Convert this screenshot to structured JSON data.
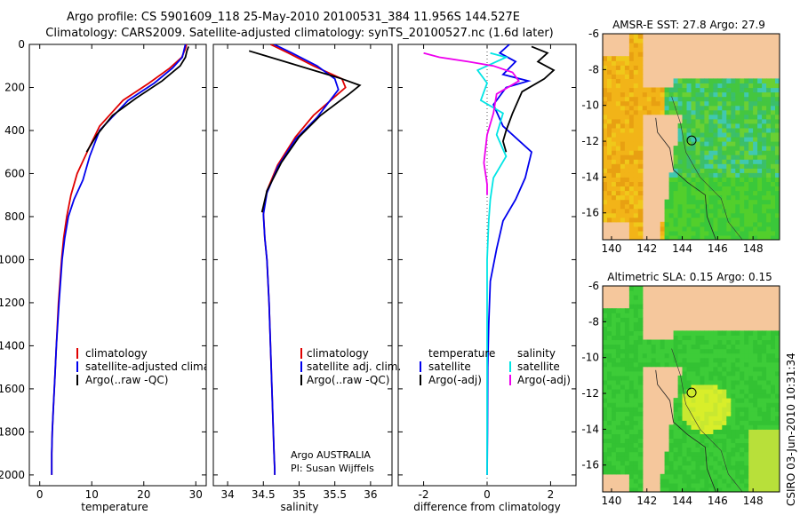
{
  "header": {
    "line1": "Argo profile: CS 5901609_118 25-May-2010 20100531_384 11.956S 144.527E",
    "line2": "Climatology: CARS2009. Satellite-adjusted climatology: synTS_20100527.nc (1.6d later)"
  },
  "colors": {
    "climatology": "#e00000",
    "satellite": "#0000ee",
    "argo": "#000000",
    "sat_diff": "#00e5e5",
    "argo_diff": "#ee00ee",
    "land": "#f5c79c",
    "sea_green": "#33cc33",
    "sea_yellow": "#f5d020"
  },
  "chart_data": [
    {
      "type": "line",
      "xlabel": "temperature",
      "ylabel": "",
      "xlim": [
        -2,
        32
      ],
      "ylim": [
        0,
        2050
      ],
      "yreversed": true,
      "xticks": [
        "0",
        "10",
        "20",
        "30"
      ],
      "yticks": [
        "0",
        "200",
        "400",
        "600",
        "800",
        "1000",
        "1200",
        "1400",
        "1600",
        "1800",
        "2000"
      ],
      "legend": [
        "climatology",
        "satellite-adjusted climatology",
        "Argo(..raw -QC)"
      ],
      "legend_position": "lower-right",
      "series": [
        {
          "name": "climatology",
          "x": [
            28.2,
            28.0,
            27.3,
            25.0,
            21.0,
            16.0,
            11.5,
            9.5,
            7.2,
            6.0,
            5.2,
            4.6,
            4.2,
            3.6,
            3.2,
            2.9,
            2.6,
            2.4,
            2.3,
            2.3,
            2.3
          ],
          "y": [
            0,
            20,
            60,
            110,
            180,
            260,
            380,
            480,
            600,
            700,
            800,
            900,
            1000,
            1200,
            1400,
            1550,
            1700,
            1800,
            1900,
            1950,
            2000
          ]
        },
        {
          "name": "satellite-adjusted climatology",
          "x": [
            28.0,
            27.8,
            27.4,
            25.5,
            22.0,
            17.0,
            11.5,
            9.6,
            8.3,
            6.6,
            5.5,
            4.8,
            4.3,
            3.7,
            3.2,
            2.9,
            2.6,
            2.4,
            2.3,
            2.3,
            2.3
          ],
          "y": [
            0,
            20,
            60,
            110,
            180,
            260,
            400,
            520,
            630,
            720,
            800,
            900,
            1000,
            1200,
            1400,
            1550,
            1700,
            1800,
            1900,
            1950,
            2000
          ]
        },
        {
          "name": "Argo(..raw -QC)",
          "x": [
            28.6,
            28.3,
            28.0,
            27.0,
            23.5,
            18.5,
            14.0,
            11.0,
            9.0
          ],
          "y": [
            10,
            30,
            60,
            100,
            170,
            250,
            330,
            420,
            500
          ]
        }
      ]
    },
    {
      "type": "line",
      "xlabel": "salinity",
      "ylabel": "",
      "xlim": [
        33.8,
        36.3
      ],
      "ylim": [
        0,
        2050
      ],
      "yreversed": true,
      "xticks": [
        "34",
        "34.5",
        "35",
        "35.5",
        "36"
      ],
      "legend": [
        "climatology",
        "satellite adj. clim.",
        "Argo(..raw -QC)"
      ],
      "legend_position": "lower-right",
      "annotations": [
        "Argo AUSTRALIA",
        "PI: Susan Wijffels"
      ],
      "series": [
        {
          "name": "climatology",
          "x": [
            34.6,
            34.85,
            35.2,
            35.6,
            35.65,
            35.2,
            34.95,
            34.7,
            34.55,
            34.5,
            34.52,
            34.55,
            34.58,
            34.6,
            34.62,
            34.64,
            34.65,
            34.66,
            34.66
          ],
          "y": [
            0,
            40,
            100,
            160,
            200,
            330,
            430,
            560,
            680,
            780,
            900,
            1000,
            1200,
            1400,
            1600,
            1800,
            1900,
            1980,
            2000
          ]
        },
        {
          "name": "satellite adj. clim.",
          "x": [
            34.65,
            34.9,
            35.25,
            35.5,
            35.55,
            35.25,
            34.95,
            34.7,
            34.55,
            34.5,
            34.52,
            34.55,
            34.58,
            34.6,
            34.62,
            34.64,
            34.65,
            34.66,
            34.66
          ],
          "y": [
            0,
            40,
            100,
            160,
            210,
            340,
            440,
            570,
            690,
            790,
            900,
            1000,
            1200,
            1400,
            1600,
            1800,
            1900,
            1980,
            2000
          ]
        },
        {
          "name": "Argo(..raw -QC)",
          "x": [
            34.3,
            34.5,
            34.8,
            35.2,
            35.6,
            35.85,
            35.7,
            35.3,
            35.0,
            34.75,
            34.55,
            34.48
          ],
          "y": [
            30,
            50,
            80,
            120,
            160,
            190,
            230,
            330,
            430,
            550,
            680,
            780
          ]
        }
      ]
    },
    {
      "type": "line",
      "xlabel": "difference from climatology",
      "ylabel": "",
      "xlim": [
        -2.8,
        2.8
      ],
      "ylim": [
        0,
        2050
      ],
      "yreversed": true,
      "xticks": [
        "-2",
        "0",
        "2"
      ],
      "legend_groups": [
        {
          "title": "temperature",
          "items": [
            "satellite",
            "Argo(-adj)"
          ]
        },
        {
          "title": "salinity",
          "items": [
            "satellite",
            "Argo(-adj)"
          ]
        }
      ],
      "legend_position": "lower-right",
      "series": [
        {
          "name": "temperature satellite",
          "x": [
            0.7,
            0.4,
            0.9,
            0.5,
            1.3,
            0.6,
            0.2,
            0.5,
            1.4,
            1.2,
            0.9,
            0.5,
            0.3,
            0.1,
            0.05,
            0.02,
            0.01,
            0.0
          ],
          "y": [
            0,
            40,
            80,
            140,
            170,
            200,
            280,
            380,
            500,
            620,
            720,
            820,
            950,
            1100,
            1300,
            1500,
            1800,
            2000
          ]
        },
        {
          "name": "temperature Argo(-adj)",
          "x": [
            1.4,
            1.9,
            1.6,
            2.1,
            1.8,
            1.1,
            0.8,
            0.6,
            0.5,
            0.6
          ],
          "y": [
            10,
            40,
            80,
            120,
            160,
            220,
            320,
            400,
            450,
            500
          ]
        },
        {
          "name": "salinity satellite",
          "x": [
            0.1,
            0.6,
            -0.3,
            0.0,
            -0.2,
            0.5,
            0.3,
            0.6,
            0.2,
            0.1,
            0.05,
            0.0,
            0.0,
            0.0
          ],
          "y": [
            40,
            60,
            120,
            180,
            260,
            320,
            420,
            520,
            620,
            720,
            820,
            1000,
            1500,
            2000
          ]
        },
        {
          "name": "salinity Argo(-adj)",
          "x": [
            -2.0,
            -1.5,
            -0.6,
            0.2,
            0.8,
            1.0,
            0.3,
            0.2,
            0.0,
            -0.1,
            0.0,
            0.0
          ],
          "y": [
            40,
            60,
            80,
            100,
            130,
            170,
            230,
            320,
            420,
            550,
            650,
            700
          ]
        }
      ]
    }
  ],
  "maps": [
    {
      "title": "AMSR-E SST: 27.8 Argo: 27.9",
      "xticks": [
        "140",
        "142",
        "144",
        "146",
        "148"
      ],
      "yticks": [
        "-6",
        "-8",
        "-10",
        "-12",
        "-14",
        "-16"
      ],
      "xlim": [
        139.5,
        149.5
      ],
      "ylim": [
        -17.5,
        -6
      ],
      "marker": {
        "lon": 144.527,
        "lat": -11.956
      }
    },
    {
      "title": "Altimetric SLA: 0.15 Argo: 0.15",
      "xticks": [
        "140",
        "142",
        "144",
        "146",
        "148"
      ],
      "yticks": [
        "-6",
        "-8",
        "-10",
        "-12",
        "-14",
        "-16"
      ],
      "xlim": [
        139.5,
        149.5
      ],
      "ylim": [
        -17.5,
        -6
      ],
      "marker": {
        "lon": 144.527,
        "lat": -11.956
      }
    }
  ],
  "footer": {
    "stamp": "CSIRO 03-Jun-2010 10:31:34"
  }
}
